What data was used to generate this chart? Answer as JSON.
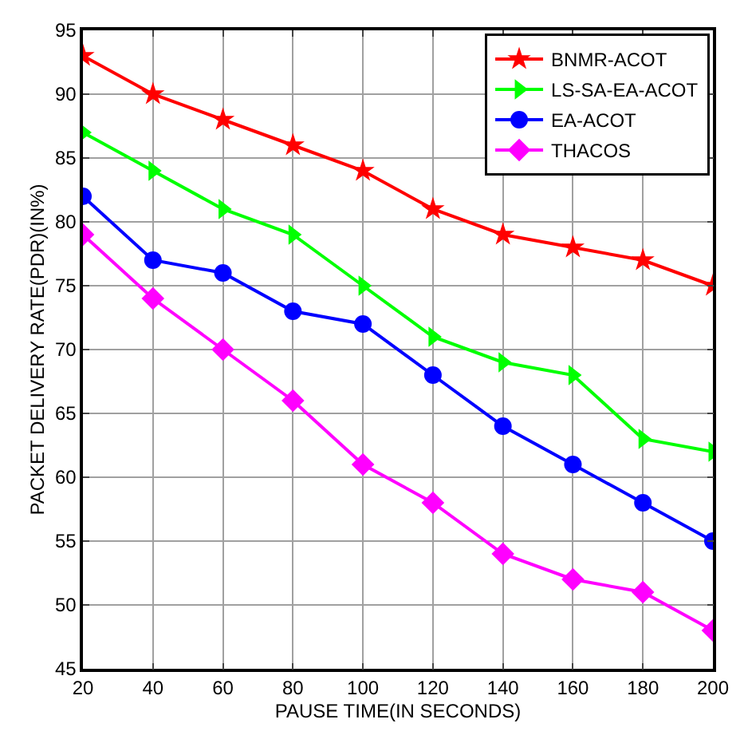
{
  "chart_data": {
    "type": "line",
    "xlabel": "PAUSE TIME(IN SECONDS)",
    "ylabel": "PACKET DELIVERY RATE(PDR)(IN%)",
    "x": [
      20,
      40,
      60,
      80,
      100,
      120,
      140,
      160,
      180,
      200
    ],
    "series": [
      {
        "name": "BNMR-ACOT",
        "color": "#ff0000",
        "marker": "star",
        "values": [
          93,
          90,
          88,
          86,
          84,
          81,
          79,
          78,
          77,
          75
        ]
      },
      {
        "name": "LS-SA-EA-ACOT",
        "color": "#00ff00",
        "marker": "triangle",
        "values": [
          87,
          84,
          81,
          79,
          75,
          71,
          69,
          68,
          63,
          62
        ]
      },
      {
        "name": "EA-ACOT",
        "color": "#0000ff",
        "marker": "circle",
        "values": [
          82,
          77,
          76,
          73,
          72,
          68,
          64,
          61,
          58,
          55
        ]
      },
      {
        "name": "THACOS",
        "color": "#ff00ff",
        "marker": "diamond",
        "values": [
          79,
          74,
          70,
          66,
          61,
          58,
          54,
          52,
          51,
          48
        ]
      }
    ],
    "xlim": [
      20,
      200
    ],
    "xticks": [
      20,
      40,
      60,
      80,
      100,
      120,
      140,
      160,
      180,
      200
    ],
    "ylim": [
      45,
      95
    ],
    "yticks": [
      45,
      50,
      55,
      60,
      65,
      70,
      75,
      80,
      85,
      90,
      95
    ],
    "grid": true,
    "legend": "top right",
    "line_style": "solid"
  }
}
